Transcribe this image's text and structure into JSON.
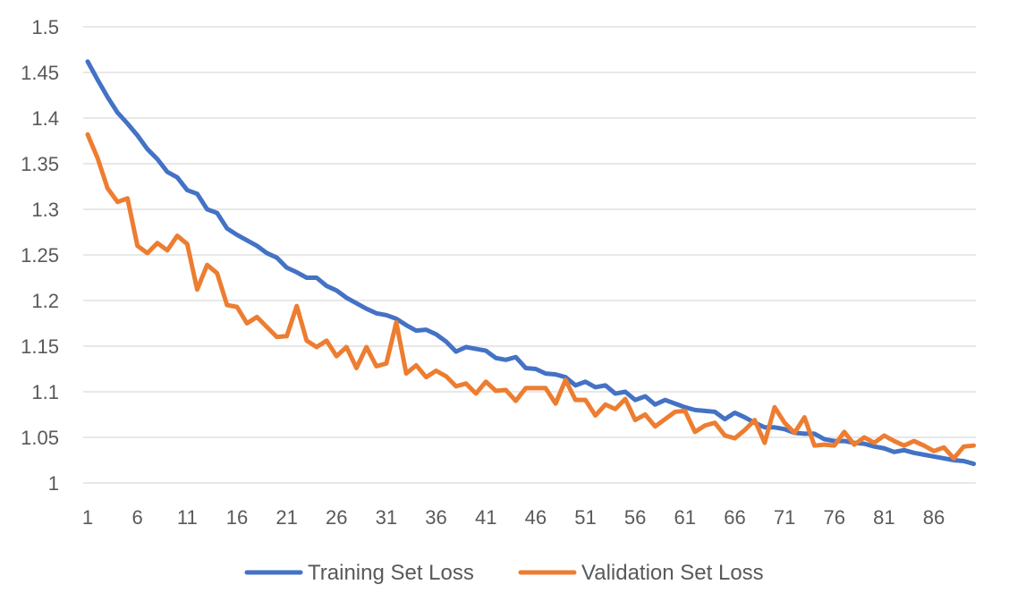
{
  "chart_data": {
    "type": "line",
    "title": "",
    "xlabel": "",
    "ylabel": "",
    "ylim": [
      1,
      1.5
    ],
    "y_ticks": [
      "1",
      "1.05",
      "1.1",
      "1.15",
      "1.2",
      "1.25",
      "1.3",
      "1.35",
      "1.4",
      "1.45",
      "1.5"
    ],
    "x_tick_labels": [
      "1",
      "6",
      "11",
      "16",
      "21",
      "26",
      "31",
      "36",
      "41",
      "46",
      "51",
      "56",
      "61",
      "66",
      "71",
      "76",
      "81",
      "86"
    ],
    "x_count": 90,
    "grid": true,
    "legend_position": "bottom",
    "colors": {
      "grid": "#d9d9d9",
      "axis": "#d9d9d9",
      "text": "#595959"
    },
    "series": [
      {
        "name": "Training Set Loss",
        "color": "#4472c4",
        "values": [
          1.462,
          1.442,
          1.423,
          1.406,
          1.394,
          1.381,
          1.366,
          1.355,
          1.341,
          1.335,
          1.321,
          1.317,
          1.3,
          1.296,
          1.279,
          1.272,
          1.266,
          1.26,
          1.252,
          1.247,
          1.236,
          1.231,
          1.225,
          1.225,
          1.216,
          1.211,
          1.203,
          1.197,
          1.191,
          1.186,
          1.184,
          1.18,
          1.173,
          1.167,
          1.168,
          1.163,
          1.155,
          1.144,
          1.149,
          1.147,
          1.145,
          1.137,
          1.135,
          1.138,
          1.126,
          1.125,
          1.12,
          1.119,
          1.116,
          1.107,
          1.111,
          1.105,
          1.107,
          1.098,
          1.1,
          1.091,
          1.095,
          1.086,
          1.091,
          1.087,
          1.083,
          1.08,
          1.079,
          1.078,
          1.07,
          1.077,
          1.072,
          1.066,
          1.061,
          1.061,
          1.059,
          1.055,
          1.054,
          1.054,
          1.048,
          1.046,
          1.046,
          1.044,
          1.043,
          1.04,
          1.038,
          1.034,
          1.036,
          1.033,
          1.031,
          1.029,
          1.027,
          1.025,
          1.024,
          1.021
        ]
      },
      {
        "name": "Validation Set Loss",
        "color": "#ed7d31",
        "values": [
          1.382,
          1.356,
          1.323,
          1.308,
          1.312,
          1.26,
          1.252,
          1.263,
          1.255,
          1.271,
          1.262,
          1.212,
          1.239,
          1.23,
          1.195,
          1.193,
          1.175,
          1.182,
          1.171,
          1.16,
          1.161,
          1.194,
          1.156,
          1.149,
          1.156,
          1.139,
          1.149,
          1.126,
          1.149,
          1.128,
          1.131,
          1.176,
          1.12,
          1.129,
          1.116,
          1.123,
          1.117,
          1.106,
          1.109,
          1.098,
          1.111,
          1.101,
          1.102,
          1.09,
          1.104,
          1.104,
          1.104,
          1.087,
          1.113,
          1.091,
          1.091,
          1.074,
          1.086,
          1.081,
          1.092,
          1.069,
          1.075,
          1.062,
          1.07,
          1.078,
          1.079,
          1.056,
          1.063,
          1.066,
          1.052,
          1.049,
          1.058,
          1.069,
          1.044,
          1.083,
          1.066,
          1.055,
          1.072,
          1.041,
          1.042,
          1.041,
          1.056,
          1.042,
          1.05,
          1.044,
          1.052,
          1.046,
          1.041,
          1.046,
          1.041,
          1.035,
          1.039,
          1.027,
          1.04,
          1.041
        ]
      }
    ]
  }
}
